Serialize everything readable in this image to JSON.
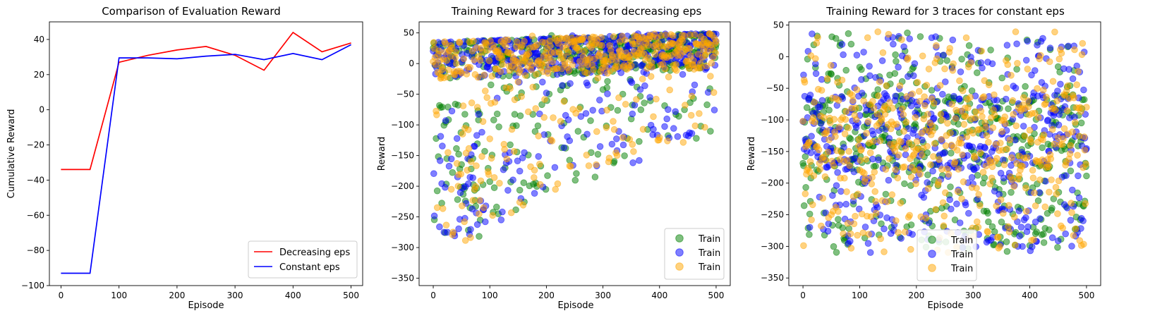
{
  "chart_data": [
    {
      "type": "line",
      "title": "Comparison of Evaluation Reward",
      "xlabel": "Episode",
      "ylabel": "Cumulative Reward",
      "xlim": [
        -20,
        520
      ],
      "ylim": [
        -100,
        50
      ],
      "xticks": [
        0,
        100,
        200,
        300,
        400,
        500
      ],
      "yticks": [
        -100,
        -80,
        -60,
        -40,
        -20,
        0,
        20,
        40
      ],
      "legend_position": "lower-right",
      "x": [
        0,
        50,
        100,
        150,
        200,
        250,
        300,
        350,
        400,
        450,
        500
      ],
      "series": [
        {
          "name": "Decreasing eps",
          "color": "#ff0000",
          "values": [
            -34,
            -34,
            27,
            31,
            34,
            36,
            31,
            22.5,
            44,
            33,
            38
          ]
        },
        {
          "name": "Constant eps",
          "color": "#0000ff",
          "values": [
            -93,
            -93,
            29.5,
            29.5,
            29,
            30.5,
            31.5,
            28.5,
            32,
            28.5,
            37
          ]
        }
      ]
    },
    {
      "type": "scatter",
      "title": "Training Reward for 3 traces for decreasing eps",
      "xlabel": "Episode",
      "ylabel": "Reward",
      "xlim": [
        -25,
        525
      ],
      "ylim": [
        -362,
        68
      ],
      "xticks": [
        0,
        100,
        200,
        300,
        400,
        500
      ],
      "yticks": [
        -350,
        -300,
        -250,
        -200,
        -150,
        -100,
        -50,
        0,
        50
      ],
      "legend_position": "lower-right",
      "episodes": [
        0,
        500
      ],
      "series": [
        {
          "name": "Train",
          "color": "#008000",
          "profile": "decreasing",
          "seed": 11
        },
        {
          "name": "Train",
          "color": "#0000ff",
          "profile": "decreasing",
          "seed": 23
        },
        {
          "name": "Train",
          "color": "#ffa500",
          "profile": "decreasing",
          "seed": 37
        }
      ]
    },
    {
      "type": "scatter",
      "title": "Training Reward for 3 traces for constant eps",
      "xlabel": "Episode",
      "ylabel": "Reward",
      "xlim": [
        -25,
        525
      ],
      "ylim": [
        -362,
        55
      ],
      "xticks": [
        0,
        100,
        200,
        300,
        400,
        500
      ],
      "yticks": [
        -350,
        -300,
        -250,
        -200,
        -150,
        -100,
        -50,
        0,
        50
      ],
      "legend_position": "lower-center",
      "episodes": [
        0,
        500
      ],
      "series": [
        {
          "name": "Train",
          "color": "#008000",
          "profile": "constant",
          "seed": 51
        },
        {
          "name": "Train",
          "color": "#0000ff",
          "profile": "constant",
          "seed": 67
        },
        {
          "name": "Train",
          "color": "#ffa500",
          "profile": "constant",
          "seed": 89
        }
      ]
    }
  ]
}
